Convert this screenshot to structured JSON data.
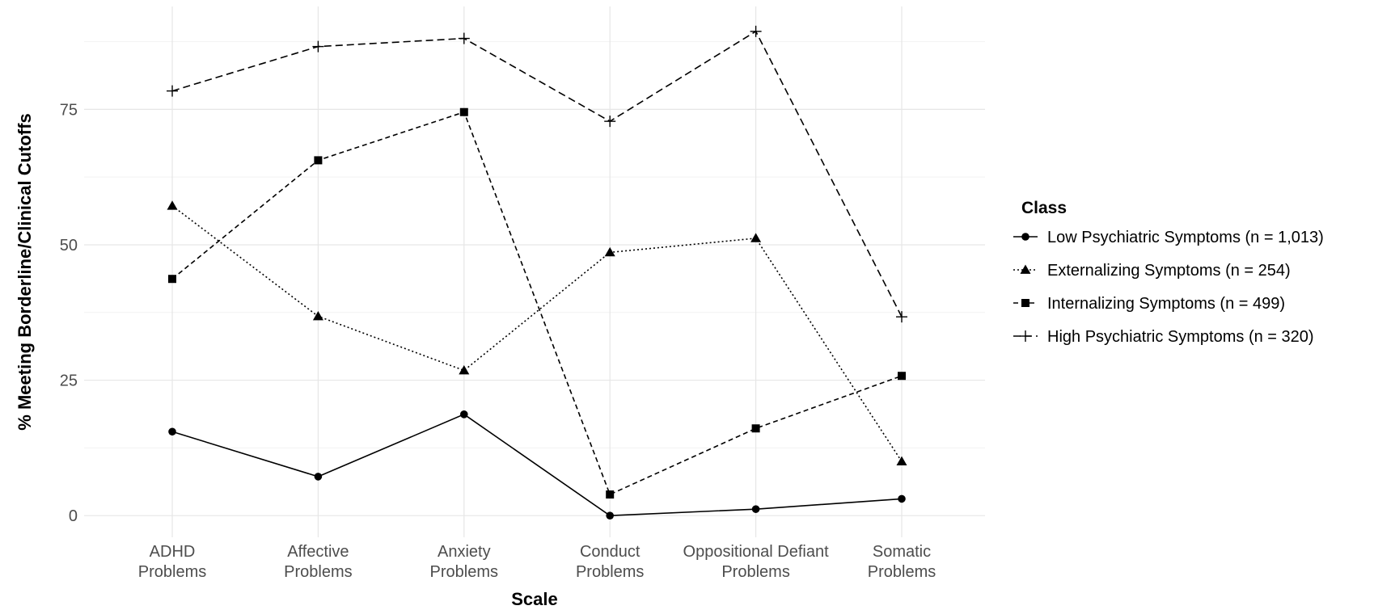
{
  "chart_data": {
    "type": "line",
    "xlabel": "Scale",
    "ylabel": "% Meeting Borderline/Clinical Cutoffs",
    "ylim": [
      -4,
      94
    ],
    "yticks": [
      0,
      25,
      50,
      75
    ],
    "grid": true,
    "legend_position": "right",
    "legend_title": "Class",
    "categories": [
      [
        "ADHD",
        "Problems"
      ],
      [
        "Affective",
        "Problems"
      ],
      [
        "Anxiety",
        "Problems"
      ],
      [
        "Conduct",
        "Problems"
      ],
      [
        "Oppositional Defiant",
        "Problems"
      ],
      [
        "Somatic",
        "Problems"
      ]
    ],
    "series": [
      {
        "name": "Low Psychiatric Symptoms (n = 1,013)",
        "marker": "circle",
        "dash": "solid",
        "values": [
          15.5,
          7.2,
          18.7,
          0.0,
          1.2,
          3.1
        ]
      },
      {
        "name": "Externalizing Symptoms (n = 254)",
        "marker": "triangle",
        "dash": "dotted",
        "values": [
          57.2,
          36.8,
          26.8,
          48.6,
          51.2,
          10.0
        ]
      },
      {
        "name": "Internalizing Symptoms (n = 499)",
        "marker": "square",
        "dash": "dashed",
        "values": [
          43.7,
          65.6,
          74.5,
          3.9,
          16.1,
          25.8
        ]
      },
      {
        "name": "High Psychiatric Symptoms (n = 320)",
        "marker": "plus",
        "dash": "longdash",
        "values": [
          78.4,
          86.6,
          88.1,
          72.8,
          89.4,
          36.7
        ]
      }
    ]
  }
}
